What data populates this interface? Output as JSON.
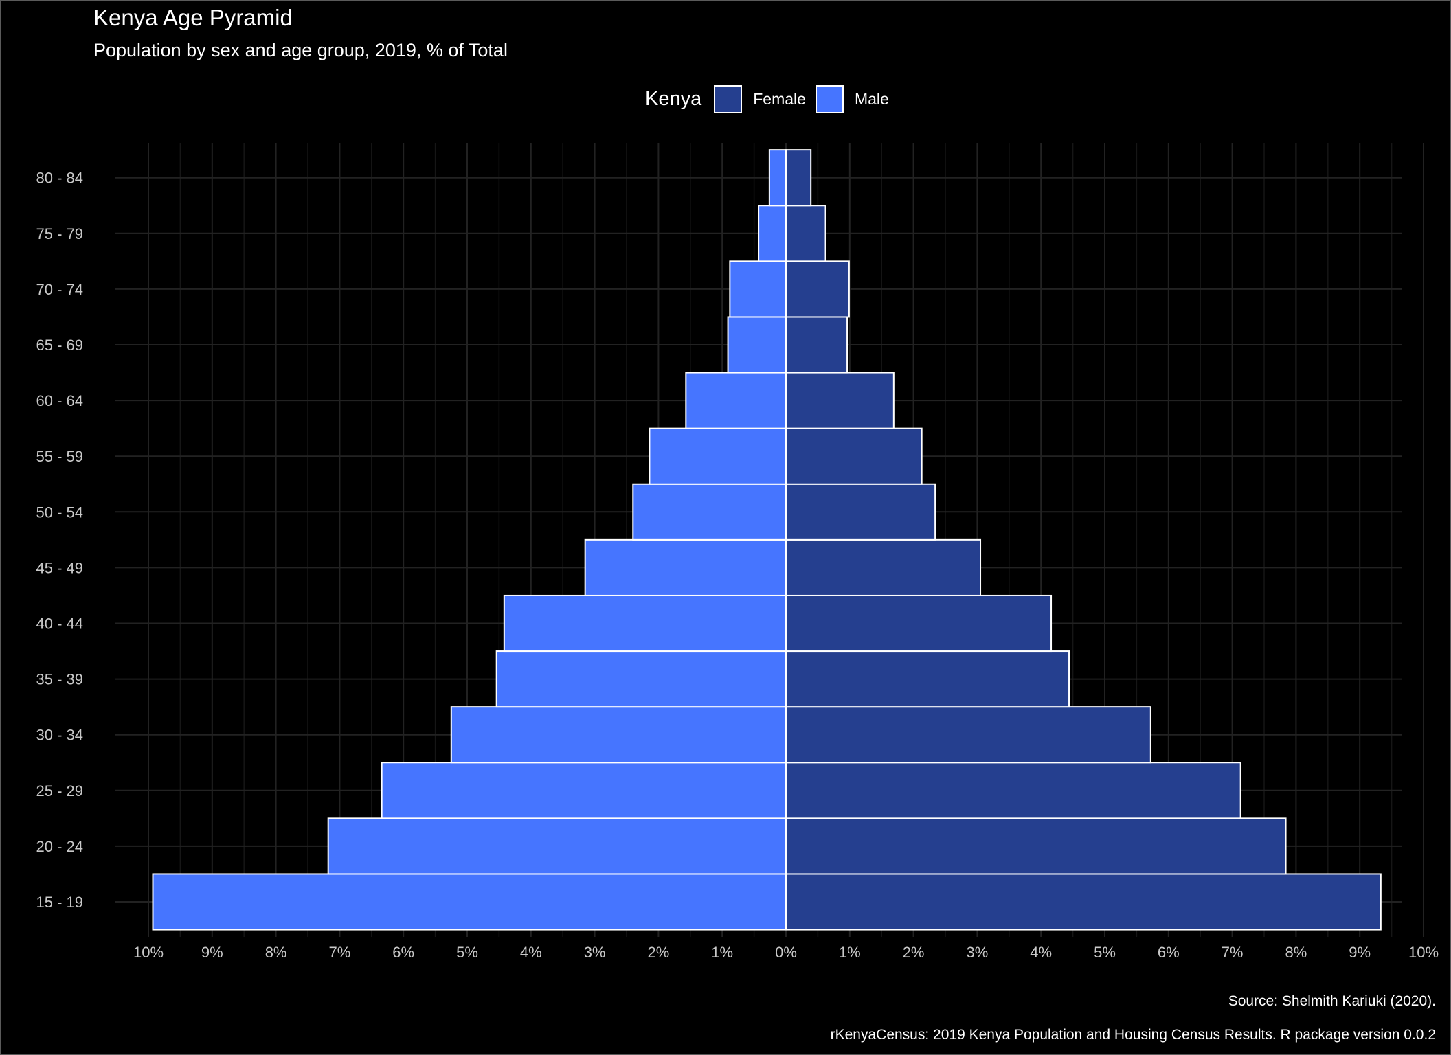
{
  "title": "Kenya Age Pyramid",
  "subtitle": "Population by sex and age group, 2019, % of Total",
  "legend": {
    "title": "Kenya",
    "items": [
      {
        "label": "Female",
        "color": "#253f8f"
      },
      {
        "label": "Male",
        "color": "#4675ff"
      }
    ]
  },
  "caption": {
    "line1": "Source: Shelmith Kariuki (2020).",
    "line2": "rKenyaCensus: 2019 Kenya Population and Housing Census Results. R package version 0.0.2"
  },
  "chart_data": {
    "type": "bar",
    "orientation": "horizontal",
    "layout": "population-pyramid",
    "categories": [
      "15 - 19",
      "20 - 24",
      "25 - 29",
      "30 - 34",
      "35 - 39",
      "40 - 44",
      "45 - 49",
      "50 - 54",
      "55 - 59",
      "60 - 64",
      "65 - 69",
      "70 - 74",
      "75 - 79",
      "80 - 84"
    ],
    "series": [
      {
        "name": "Female",
        "color": "#253f8f",
        "side": "right",
        "values": [
          9.33,
          7.84,
          7.13,
          5.72,
          4.44,
          4.16,
          3.05,
          2.34,
          2.13,
          1.69,
          0.96,
          0.99,
          0.62,
          0.39
        ]
      },
      {
        "name": "Male",
        "color": "#4675ff",
        "side": "left",
        "values": [
          9.93,
          7.18,
          6.34,
          5.25,
          4.54,
          4.42,
          3.15,
          2.4,
          2.14,
          1.57,
          0.91,
          0.88,
          0.43,
          0.26
        ]
      }
    ],
    "xlim": [
      -10,
      10
    ],
    "xticks": [
      -10,
      -9,
      -8,
      -7,
      -6,
      -5,
      -4,
      -3,
      -2,
      -1,
      0,
      1,
      2,
      3,
      4,
      5,
      6,
      7,
      8,
      9,
      10
    ],
    "xtick_labels": [
      "10%",
      "9%",
      "8%",
      "7%",
      "6%",
      "5%",
      "4%",
      "3%",
      "2%",
      "1%",
      "0%",
      "1%",
      "2%",
      "3%",
      "4%",
      "5%",
      "6%",
      "7%",
      "8%",
      "9%",
      "10%"
    ],
    "xlabel": "",
    "ylabel": "",
    "grid": true,
    "legend_position": "top",
    "bar_outline_color": "#ffffff",
    "background": "#000000"
  }
}
